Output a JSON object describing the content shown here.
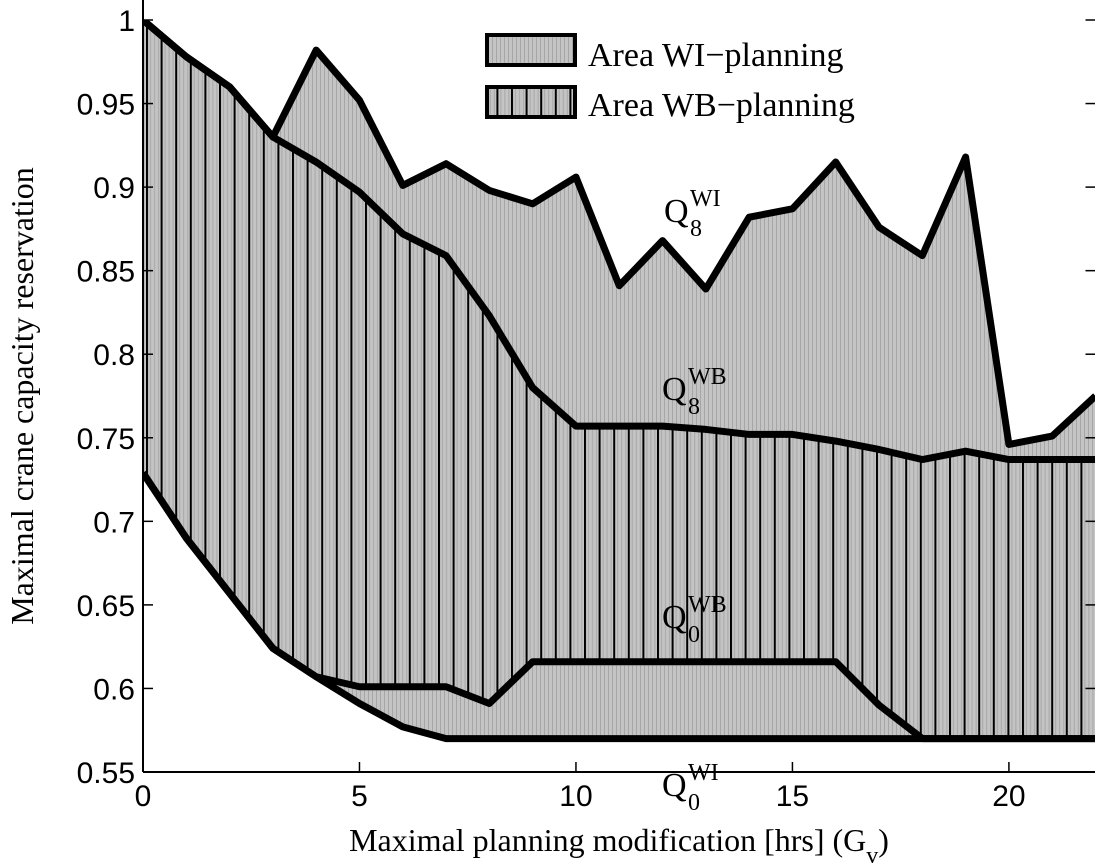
{
  "chart_data": {
    "type": "area",
    "xlabel": "Maximal planning modification [hrs] (G",
    "xlabel_sub": "v",
    "xlabel_end": ")",
    "ylabel": "Maximal crane capacity reservation",
    "xlim": [
      0,
      22
    ],
    "ylim": [
      0.55,
      1.0
    ],
    "xticks": [
      0,
      5,
      10,
      15,
      20
    ],
    "yticks": [
      0.55,
      0.6,
      0.65,
      0.7,
      0.75,
      0.8,
      0.85,
      0.9,
      0.95,
      1.0
    ],
    "ytick_labels": [
      "0.55",
      "0.6",
      "0.65",
      "0.7",
      "0.75",
      "0.8",
      "0.85",
      "0.9",
      "0.95",
      "1"
    ],
    "grid": false,
    "legend_position": "top-center",
    "legend": [
      {
        "label": "Area WI−planning",
        "pattern": "gray-fill"
      },
      {
        "label": "Area WB−planning",
        "pattern": "vertical-hatch"
      }
    ],
    "x": [
      0,
      1,
      2,
      3,
      4,
      5,
      6,
      7,
      8,
      9,
      10,
      11,
      12,
      13,
      14,
      15,
      16,
      17,
      18,
      19,
      20,
      21,
      22
    ],
    "series": [
      {
        "name": "Q8 WI",
        "label_main": "Q",
        "label_sub": "8",
        "label_sup": "WI",
        "values": [
          1.0,
          0.978,
          0.96,
          0.93,
          0.982,
          0.952,
          0.901,
          0.914,
          0.898,
          0.89,
          0.906,
          0.841,
          0.868,
          0.839,
          0.882,
          0.887,
          0.915,
          0.876,
          0.859,
          0.918,
          0.746,
          0.751,
          0.775
        ]
      },
      {
        "name": "Q8 WB",
        "label_main": "Q",
        "label_sub": "8",
        "label_sup": "WB",
        "values": [
          1.0,
          0.978,
          0.96,
          0.93,
          0.915,
          0.897,
          0.872,
          0.859,
          0.823,
          0.78,
          0.757,
          0.757,
          0.757,
          0.755,
          0.752,
          0.752,
          0.748,
          0.743,
          0.737,
          0.742,
          0.737,
          0.737,
          0.737
        ]
      },
      {
        "name": "Q0 WB",
        "label_main": "Q",
        "label_sub": "0",
        "label_sup": "WB",
        "values": [
          0.729,
          0.69,
          0.657,
          0.624,
          0.607,
          0.601,
          0.601,
          0.601,
          0.591,
          0.616,
          0.616,
          0.616,
          0.616,
          0.616,
          0.616,
          0.616,
          0.616,
          0.59,
          0.57,
          0.57,
          0.57,
          0.57,
          0.57
        ]
      },
      {
        "name": "Q0 WI",
        "label_main": "Q",
        "label_sub": "0",
        "label_sup": "WI",
        "values": [
          0.729,
          0.69,
          0.657,
          0.624,
          0.607,
          0.591,
          0.577,
          0.57,
          0.57,
          0.57,
          0.57,
          0.57,
          0.57,
          0.57,
          0.57,
          0.57,
          0.57,
          0.57,
          0.57,
          0.57,
          0.57,
          0.57,
          0.57
        ]
      }
    ]
  }
}
